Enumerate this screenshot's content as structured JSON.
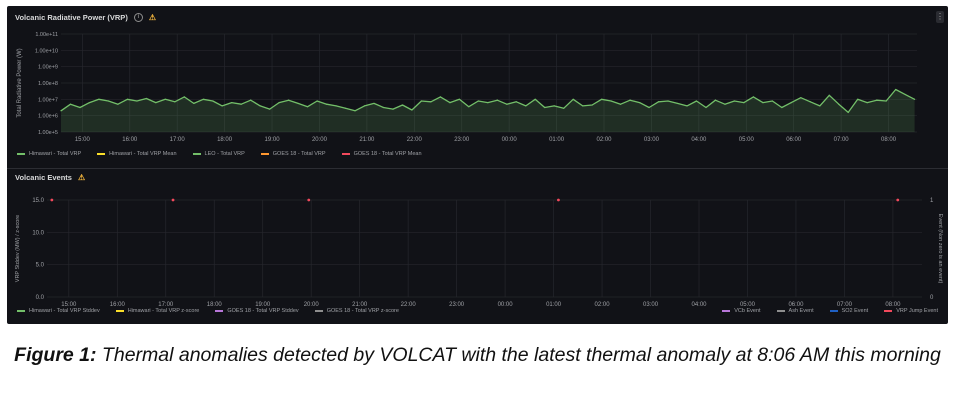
{
  "panel1": {
    "title": "Volcanic Radiative Power (VRP)",
    "legend": [
      {
        "label": "Himawari - Total VRP",
        "color": "#73bf69"
      },
      {
        "label": "Himawari - Total VRP Mean",
        "color": "#fade2a"
      },
      {
        "label": "LEO - Total VRP",
        "color": "#73bf69"
      },
      {
        "label": "GOES 18 - Total VRP",
        "color": "#ff9830"
      },
      {
        "label": "GOES 18 - Total VRP Mean",
        "color": "#f2495c"
      }
    ]
  },
  "panel2": {
    "title": "Volcanic Events",
    "legend_left": [
      {
        "label": "Himawari - Total VRP Stddev",
        "color": "#73bf69"
      },
      {
        "label": "Himawari - Total VRP z-score",
        "color": "#fade2a"
      },
      {
        "label": "GOES 18 - Total VRP Stddev",
        "color": "#b877d9"
      },
      {
        "label": "GOES 18 - Total VRP z-score",
        "color": "#8e8e8e"
      }
    ],
    "legend_right": [
      {
        "label": "VCb Event",
        "color": "#b877d9"
      },
      {
        "label": "Ash Event",
        "color": "#8e8e8e"
      },
      {
        "label": "SO2 Event",
        "color": "#1f60c4"
      },
      {
        "label": "VRP Jump Event",
        "color": "#f2495c"
      }
    ]
  },
  "chart_data": [
    {
      "type": "area",
      "title": "Volcanic Radiative Power (VRP)",
      "ylabel": "Total Radiative Power (W)",
      "xlabel": "",
      "y_scale": "log",
      "ylim_log10": [
        5,
        11
      ],
      "y_ticks": [
        "1.00e+5",
        "1.00e+6",
        "1.00e+7",
        "1.00e+8",
        "1.00e+9",
        "1.00e+10",
        "1.00e+11"
      ],
      "x_ticks": [
        "15:00",
        "16:00",
        "17:00",
        "18:00",
        "19:00",
        "20:00",
        "21:00",
        "22:00",
        "23:00",
        "00:00",
        "01:00",
        "02:00",
        "03:00",
        "04:00",
        "05:00",
        "06:00",
        "07:00",
        "08:00"
      ],
      "x_range_hours": [
        14.55,
        32.6
      ],
      "series": [
        {
          "name": "Himawari - Total VRP",
          "x_hours": [
            14.55,
            14.75,
            14.95,
            15.15,
            15.35,
            15.55,
            15.75,
            15.95,
            16.15,
            16.35,
            16.55,
            16.75,
            16.95,
            17.15,
            17.35,
            17.55,
            17.75,
            17.95,
            18.15,
            18.35,
            18.55,
            18.75,
            18.95,
            19.15,
            19.35,
            19.55,
            19.75,
            19.95,
            20.15,
            20.35,
            20.55,
            20.75,
            20.95,
            21.15,
            21.35,
            21.55,
            21.75,
            21.95,
            22.15,
            22.35,
            22.55,
            22.75,
            22.95,
            23.15,
            23.35,
            23.55,
            23.75,
            23.95,
            24.15,
            24.35,
            24.55,
            24.75,
            24.95,
            25.15,
            25.35,
            25.55,
            25.75,
            25.95,
            26.15,
            26.35,
            26.55,
            26.75,
            26.95,
            27.15,
            27.35,
            27.55,
            27.75,
            27.95,
            28.15,
            28.35,
            28.55,
            28.75,
            28.95,
            29.15,
            29.35,
            29.55,
            29.75,
            29.95,
            30.15,
            30.35,
            30.55,
            30.75,
            30.95,
            31.15,
            31.35,
            31.55,
            31.75,
            31.95,
            32.15,
            32.35,
            32.55
          ],
          "log10_values": [
            6.3,
            6.7,
            6.5,
            6.8,
            7.0,
            6.9,
            6.7,
            7.0,
            6.9,
            7.05,
            6.8,
            7.0,
            6.85,
            7.15,
            6.75,
            7.0,
            6.9,
            6.6,
            6.8,
            6.7,
            6.95,
            6.6,
            6.4,
            6.8,
            6.95,
            6.75,
            6.55,
            6.9,
            6.7,
            6.6,
            6.45,
            6.3,
            6.6,
            6.75,
            6.5,
            6.4,
            6.65,
            6.35,
            6.9,
            6.85,
            7.15,
            6.8,
            7.0,
            6.55,
            6.9,
            6.8,
            6.95,
            6.7,
            6.85,
            6.6,
            7.0,
            6.5,
            6.6,
            6.45,
            7.0,
            6.6,
            6.65,
            7.0,
            6.9,
            6.7,
            6.95,
            6.8,
            6.5,
            6.85,
            6.9,
            6.75,
            6.6,
            6.9,
            6.5,
            6.95,
            6.7,
            6.9,
            6.8,
            7.15,
            6.8,
            6.9,
            6.5,
            6.8,
            7.1,
            6.85,
            6.6,
            7.25,
            6.7,
            6.2,
            7.0,
            6.8,
            6.95,
            6.9,
            7.6,
            7.3,
            7.0
          ]
        }
      ]
    },
    {
      "type": "scatter",
      "title": "Volcanic Events",
      "ylabel": "VRP Stddev (MW) / z-score",
      "y2label": "Event (Non zero is an event)",
      "ylim": [
        0,
        15
      ],
      "y_ticks": [
        0.0,
        5.0,
        10.0,
        15.0
      ],
      "y2_ticks": [
        0,
        1
      ],
      "x_ticks": [
        "15:00",
        "16:00",
        "17:00",
        "18:00",
        "19:00",
        "20:00",
        "21:00",
        "22:00",
        "23:00",
        "00:00",
        "01:00",
        "02:00",
        "03:00",
        "04:00",
        "05:00",
        "06:00",
        "07:00",
        "08:00"
      ],
      "x_range_hours": [
        14.55,
        32.6
      ],
      "series": [
        {
          "name": "VRP Jump Event",
          "x_hours": [
            14.65,
            17.15,
            19.95,
            25.1,
            32.1
          ],
          "values": [
            1,
            1,
            1,
            1,
            1
          ]
        }
      ]
    }
  ],
  "caption": {
    "label": "Figure 1:",
    "text": " Thermal anomalies detected by VOLCAT with the latest thermal anomaly at 8:06 AM this morning"
  }
}
